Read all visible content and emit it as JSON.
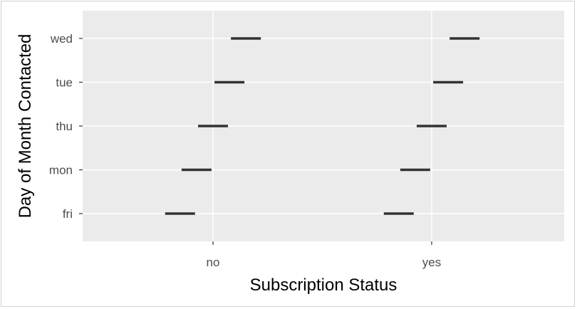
{
  "chart_data": {
    "type": "scatter",
    "marker": "horizontal-dash",
    "title": "",
    "xlabel": "Subscription Status",
    "ylabel": "Day of Month Contacted",
    "x_categories": [
      "no",
      "yes"
    ],
    "y_categories": [
      "fri",
      "mon",
      "thu",
      "tue",
      "wed"
    ],
    "points": [
      {
        "x": "no",
        "y": "fri",
        "x_offset": -0.3
      },
      {
        "x": "no",
        "y": "mon",
        "x_offset": -0.15
      },
      {
        "x": "no",
        "y": "thu",
        "x_offset": 0.0
      },
      {
        "x": "no",
        "y": "tue",
        "x_offset": 0.15
      },
      {
        "x": "no",
        "y": "wed",
        "x_offset": 0.3
      },
      {
        "x": "yes",
        "y": "fri",
        "x_offset": -0.3
      },
      {
        "x": "yes",
        "y": "mon",
        "x_offset": -0.15
      },
      {
        "x": "yes",
        "y": "thu",
        "x_offset": 0.0
      },
      {
        "x": "yes",
        "y": "tue",
        "x_offset": 0.15
      },
      {
        "x": "yes",
        "y": "wed",
        "x_offset": 0.3
      }
    ],
    "grid": true,
    "legend": "none",
    "colors": {
      "panel_background": "#ebebeb",
      "grid": "#ffffff",
      "mark": "#333333",
      "tick_label": "#4d4d4d",
      "axis_title": "#000000"
    }
  }
}
